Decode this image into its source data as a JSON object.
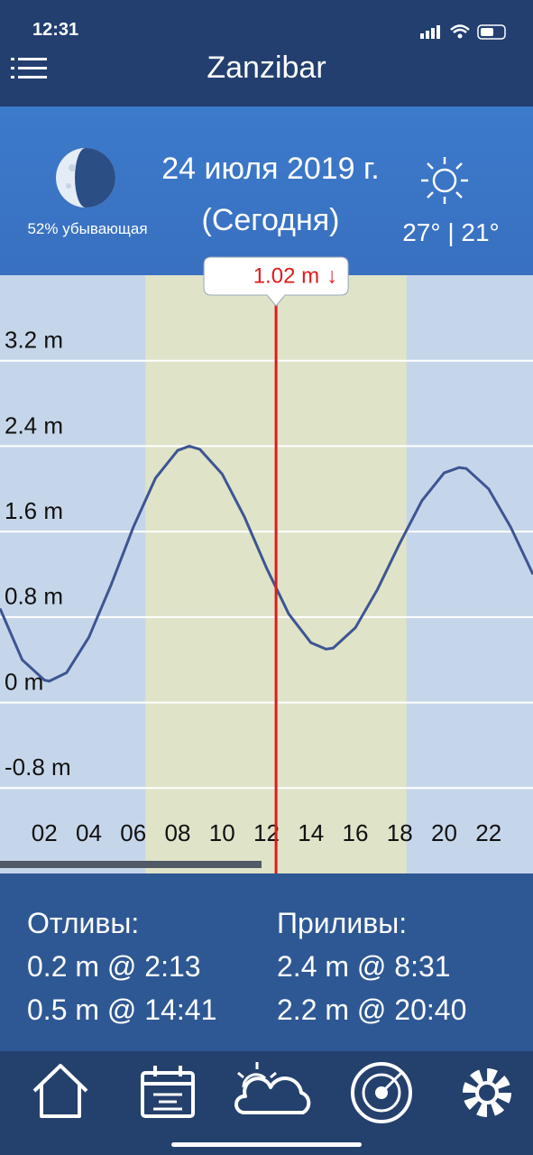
{
  "status_bar": {
    "time": "12:31"
  },
  "header": {
    "title": "Zanzibar"
  },
  "date_panel": {
    "moon_phase": "52% убывающая",
    "date": "24 июля 2019 г.",
    "today": "(Сегодня)",
    "temperature": "27° | 21°"
  },
  "chart_data": {
    "type": "line",
    "x": [
      0,
      1,
      2,
      2.22,
      3,
      4,
      5,
      6,
      7,
      8,
      8.52,
      9,
      10,
      11,
      12,
      13,
      14,
      14.68,
      15,
      16,
      17,
      18,
      19,
      20,
      20.67,
      21,
      22,
      23,
      24
    ],
    "series": [
      {
        "color": "#3d5592",
        "values": [
          0.88,
          0.4,
          0.21,
          0.2,
          0.28,
          0.61,
          1.1,
          1.64,
          2.1,
          2.36,
          2.4,
          2.37,
          2.14,
          1.74,
          1.26,
          0.83,
          0.56,
          0.5,
          0.51,
          0.7,
          1.06,
          1.49,
          1.89,
          2.15,
          2.2,
          2.19,
          2.0,
          1.64,
          1.2
        ]
      }
    ],
    "xlim": [
      0,
      24
    ],
    "ylim": [
      -1.6,
      4.0
    ],
    "xticks": [
      {
        "value": 2,
        "label": "02"
      },
      {
        "value": 4,
        "label": "04"
      },
      {
        "value": 6,
        "label": "06"
      },
      {
        "value": 8,
        "label": "08"
      },
      {
        "value": 10,
        "label": "10"
      },
      {
        "value": 12,
        "label": "12"
      },
      {
        "value": 14,
        "label": "14"
      },
      {
        "value": 16,
        "label": "16"
      },
      {
        "value": 18,
        "label": "18"
      },
      {
        "value": 20,
        "label": "20"
      },
      {
        "value": 22,
        "label": "22"
      }
    ],
    "yticks": [
      {
        "value": -0.8,
        "label": "-0.8 m"
      },
      {
        "value": 0,
        "label": "0 m"
      },
      {
        "value": 0.8,
        "label": "0.8 m"
      },
      {
        "value": 1.6,
        "label": "1.6 m"
      },
      {
        "value": 2.4,
        "label": "2.4 m"
      },
      {
        "value": 3.2,
        "label": "3.2 m"
      }
    ],
    "grid": true,
    "daylight": [
      6.55,
      18.3
    ],
    "current": {
      "x": 12.43,
      "value": 1.02,
      "label": "1.02 m",
      "trend": "↓",
      "color": "#e01b1b"
    }
  },
  "tides": {
    "low_title": "Отливы:",
    "low": [
      "0.2 m @ 2:13",
      "0.5 m @ 14:41"
    ],
    "high_title": "Приливы:",
    "high": [
      "2.4 m @ 8:31",
      "2.2 m @ 20:40"
    ]
  }
}
